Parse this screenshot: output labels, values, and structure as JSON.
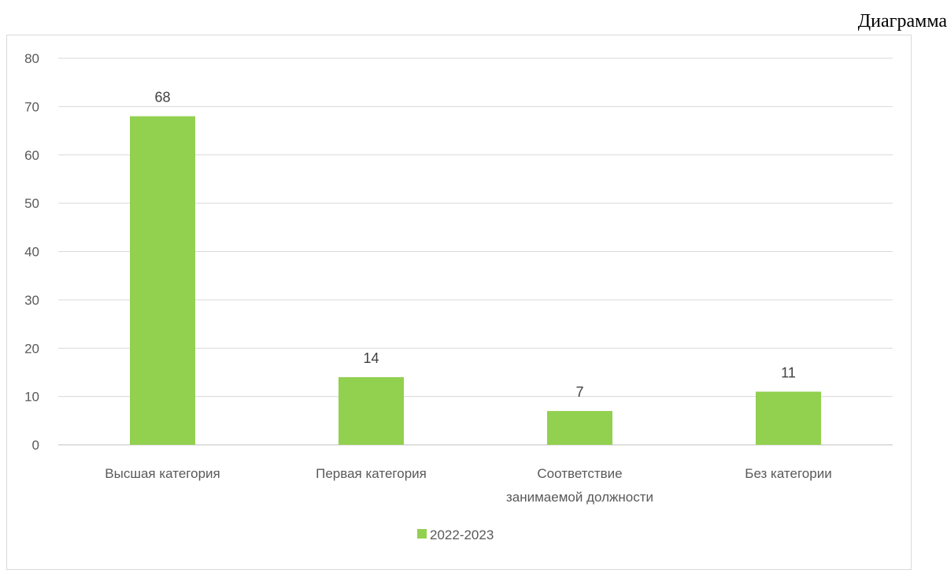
{
  "caption": "Диаграмма",
  "chart_data": {
    "type": "bar",
    "categories": [
      [
        "Высшая категория"
      ],
      [
        "Первая категория"
      ],
      [
        "Соответствие",
        "занимаемой должности"
      ],
      [
        "Без категории"
      ]
    ],
    "series": [
      {
        "name": "2022-2023",
        "values": [
          68,
          14,
          7,
          11
        ],
        "color": "#92d050"
      }
    ],
    "ylim": [
      0,
      80
    ],
    "yticks": [
      0,
      10,
      20,
      30,
      40,
      50,
      60,
      70,
      80
    ],
    "grid": true,
    "legend_position": "bottom",
    "data_labels": true
  }
}
